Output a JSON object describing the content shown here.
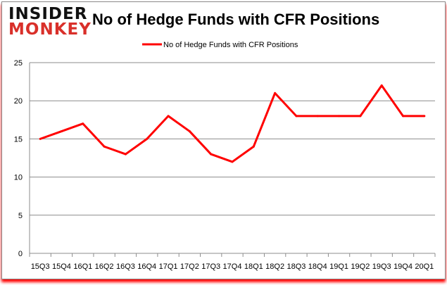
{
  "logo": {
    "line1": "INSIDER",
    "line2": "MONKEY"
  },
  "chart_data": {
    "type": "line",
    "title": "No of Hedge Funds with CFR Positions",
    "categories": [
      "15Q3",
      "15Q4",
      "16Q1",
      "16Q2",
      "16Q3",
      "16Q4",
      "17Q1",
      "17Q2",
      "17Q3",
      "17Q4",
      "18Q1",
      "18Q2",
      "18Q3",
      "18Q4",
      "19Q1",
      "19Q2",
      "19Q3",
      "19Q4",
      "20Q1"
    ],
    "series": [
      {
        "name": "No of Hedge Funds with CFR Positions",
        "color": "#ff0000",
        "values": [
          15,
          16,
          17,
          14,
          13,
          15,
          18,
          16,
          13,
          12,
          14,
          21,
          18,
          18,
          18,
          18,
          22,
          18,
          18
        ]
      }
    ],
    "ylim": [
      0,
      25
    ],
    "yticks": [
      0,
      5,
      10,
      15,
      20,
      25
    ],
    "grid": true,
    "legend": "top"
  }
}
